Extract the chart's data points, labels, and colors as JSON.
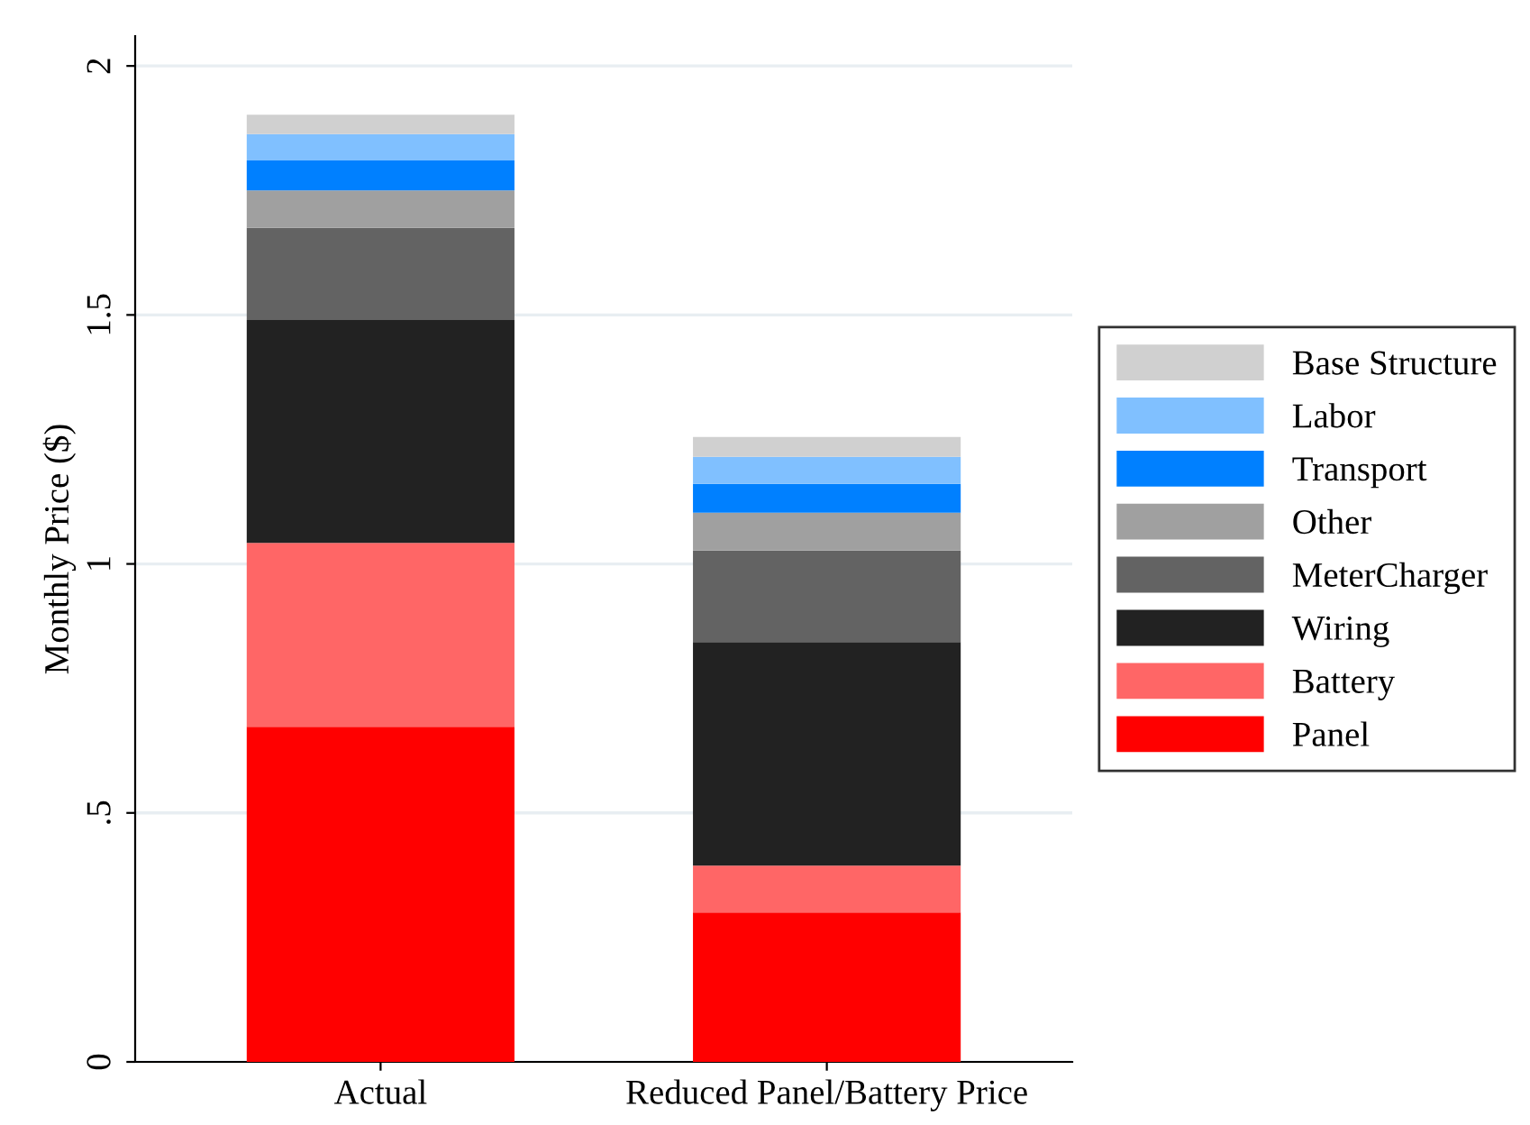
{
  "chart_data": {
    "type": "bar",
    "stacked": true,
    "ylabel": "Monthly Price ($)",
    "categories": [
      "Actual",
      "Reduced Panel/Battery Price"
    ],
    "series": [
      {
        "name": "Panel",
        "color": "#ff0000",
        "values": [
          0.673,
          0.3
        ]
      },
      {
        "name": "Battery",
        "color": "#ff6666",
        "values": [
          0.369,
          0.094
        ]
      },
      {
        "name": "Wiring",
        "color": "#222222",
        "values": [
          0.448,
          0.449
        ]
      },
      {
        "name": "MeterCharger",
        "color": "#636363",
        "values": [
          0.185,
          0.184
        ]
      },
      {
        "name": "Other",
        "color": "#a0a0a0",
        "values": [
          0.075,
          0.076
        ]
      },
      {
        "name": "Transport",
        "color": "#0080ff",
        "values": [
          0.06,
          0.058
        ]
      },
      {
        "name": "Labor",
        "color": "#80c0ff",
        "values": [
          0.053,
          0.054
        ]
      },
      {
        "name": "Base Structure",
        "color": "#d0d0d0",
        "values": [
          0.039,
          0.04
        ]
      }
    ],
    "ylim": [
      0,
      2.06
    ],
    "yticks": [
      0,
      {
        "value": 0.5,
        "label": ".5"
      },
      1,
      1.5,
      2
    ],
    "grid": "y",
    "legend": "right"
  }
}
